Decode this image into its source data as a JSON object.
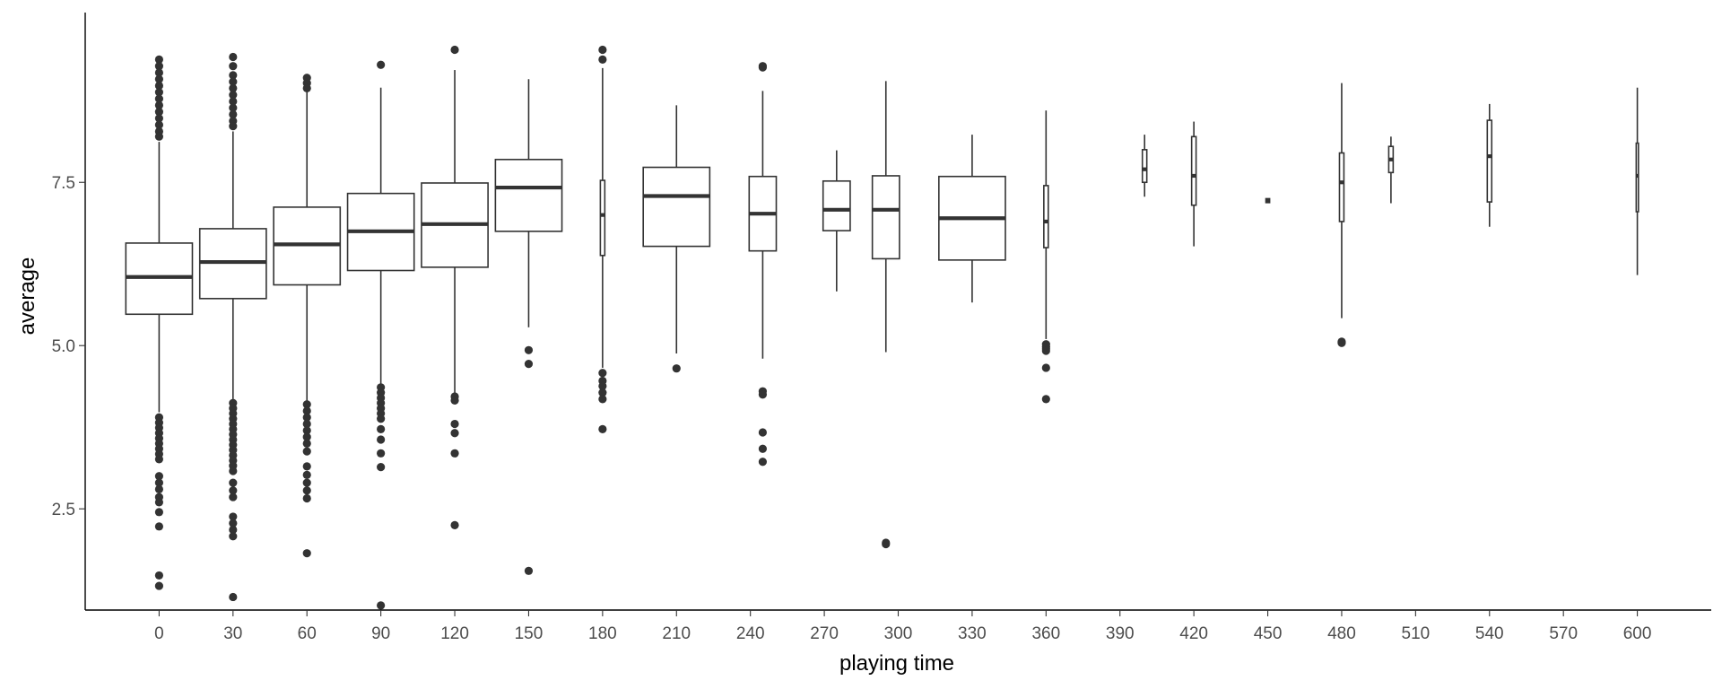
{
  "chart_data": {
    "type": "boxplot",
    "xlabel": "playing time",
    "ylabel": "average",
    "x_ticks": [
      0,
      30,
      60,
      90,
      120,
      150,
      180,
      210,
      240,
      270,
      300,
      330,
      360,
      390,
      420,
      450,
      480,
      510,
      540,
      570,
      600
    ],
    "y_ticks": [
      2.5,
      5.0,
      7.5
    ],
    "y_tick_labels": [
      "2.5",
      "5.0",
      "7.5"
    ],
    "xlim": [
      -30,
      630
    ],
    "ylim": [
      0.95,
      10.1
    ],
    "grid": false,
    "colors": {
      "box_line": "#333333",
      "box_fill": "#ffffff",
      "axis": "#000000",
      "tick_text": "#4d4d4d"
    },
    "groups": [
      {
        "x": 0,
        "width": 27,
        "q1": 5.48,
        "median": 6.05,
        "q3": 6.57,
        "whisker_low": 3.98,
        "whisker_high": 8.12,
        "outliers": [
          9.38,
          9.28,
          9.18,
          9.08,
          8.98,
          8.88,
          8.78,
          8.68,
          8.58,
          8.48,
          8.38,
          8.28,
          8.2,
          3.9,
          3.82,
          3.74,
          3.66,
          3.58,
          3.5,
          3.42,
          3.34,
          3.26,
          3.0,
          2.9,
          2.8,
          2.68,
          2.6,
          2.45,
          2.23,
          1.48,
          1.32
        ]
      },
      {
        "x": 30,
        "width": 27,
        "q1": 5.72,
        "median": 6.28,
        "q3": 6.79,
        "whisker_low": 4.18,
        "whisker_high": 8.28,
        "outliers": [
          9.42,
          9.28,
          9.14,
          9.04,
          8.94,
          8.84,
          8.74,
          8.64,
          8.54,
          8.44,
          8.36,
          4.12,
          4.04,
          3.96,
          3.88,
          3.8,
          3.72,
          3.64,
          3.56,
          3.48,
          3.4,
          3.32,
          3.24,
          3.16,
          3.08,
          2.9,
          2.78,
          2.68,
          2.38,
          2.28,
          2.18,
          2.08,
          1.15
        ]
      },
      {
        "x": 60,
        "width": 27,
        "q1": 5.93,
        "median": 6.55,
        "q3": 7.12,
        "whisker_low": 4.15,
        "whisker_high": 8.9,
        "outliers": [
          9.1,
          9.02,
          8.94,
          4.1,
          4.0,
          3.9,
          3.8,
          3.7,
          3.6,
          3.5,
          3.38,
          3.15,
          3.02,
          2.9,
          2.78,
          2.66,
          1.82
        ]
      },
      {
        "x": 90,
        "width": 27,
        "q1": 6.15,
        "median": 6.75,
        "q3": 7.33,
        "whisker_low": 4.4,
        "whisker_high": 8.95,
        "outliers": [
          9.3,
          4.36,
          4.28,
          4.2,
          4.12,
          4.04,
          3.96,
          3.88,
          3.72,
          3.56,
          3.35,
          3.14,
          1.02
        ]
      },
      {
        "x": 120,
        "width": 27,
        "q1": 6.2,
        "median": 6.86,
        "q3": 7.49,
        "whisker_low": 4.25,
        "whisker_high": 9.22,
        "outliers": [
          9.53,
          4.22,
          4.16,
          3.8,
          3.66,
          3.35,
          2.25
        ]
      },
      {
        "x": 150,
        "width": 27,
        "q1": 6.75,
        "median": 7.42,
        "q3": 7.85,
        "whisker_low": 5.28,
        "whisker_high": 9.08,
        "outliers": [
          4.93,
          4.72,
          1.55
        ]
      },
      {
        "x": 180,
        "width": 1.8,
        "q1": 6.38,
        "median": 7.0,
        "q3": 7.53,
        "whisker_low": 4.66,
        "whisker_high": 9.25,
        "outliers": [
          9.53,
          9.38,
          4.58,
          4.46,
          4.38,
          4.28,
          4.18,
          3.72
        ]
      },
      {
        "x": 210,
        "width": 27,
        "q1": 6.52,
        "median": 7.29,
        "q3": 7.73,
        "whisker_low": 4.88,
        "whisker_high": 8.68,
        "outliers": [
          4.65
        ]
      },
      {
        "x": 245,
        "width": 11,
        "q1": 6.45,
        "median": 7.02,
        "q3": 7.59,
        "whisker_low": 4.8,
        "whisker_high": 8.9,
        "outliers": [
          9.28,
          9.26,
          4.3,
          4.25,
          3.67,
          3.42,
          3.22
        ]
      },
      {
        "x": 275,
        "width": 11,
        "q1": 6.76,
        "median": 7.08,
        "q3": 7.52,
        "whisker_low": 5.83,
        "whisker_high": 7.99,
        "outliers": []
      },
      {
        "x": 295,
        "width": 11,
        "q1": 6.33,
        "median": 7.08,
        "q3": 7.6,
        "whisker_low": 4.9,
        "whisker_high": 9.05,
        "outliers": [
          1.96,
          1.98
        ]
      },
      {
        "x": 330,
        "width": 27,
        "q1": 6.31,
        "median": 6.95,
        "q3": 7.59,
        "whisker_low": 5.66,
        "whisker_high": 8.23,
        "outliers": []
      },
      {
        "x": 360,
        "width": 1.8,
        "q1": 6.5,
        "median": 6.9,
        "q3": 7.45,
        "whisker_low": 5.1,
        "whisker_high": 8.6,
        "outliers": [
          5.02,
          4.98,
          4.95,
          4.92,
          4.66,
          4.18
        ]
      },
      {
        "x": 400,
        "width": 1.8,
        "q1": 7.5,
        "median": 7.7,
        "q3": 8.0,
        "whisker_low": 7.28,
        "whisker_high": 8.23,
        "outliers": []
      },
      {
        "x": 420,
        "width": 1.8,
        "q1": 7.15,
        "median": 7.6,
        "q3": 8.2,
        "whisker_low": 6.52,
        "whisker_high": 8.43,
        "outliers": []
      },
      {
        "x": 450,
        "width": 1.5,
        "q1": 7.19,
        "median": 7.22,
        "q3": 7.25,
        "whisker_low": 7.19,
        "whisker_high": 7.25,
        "outliers": []
      },
      {
        "x": 480,
        "width": 1.8,
        "q1": 6.9,
        "median": 7.5,
        "q3": 7.95,
        "whisker_low": 5.42,
        "whisker_high": 9.02,
        "outliers": [
          5.06,
          5.04
        ]
      },
      {
        "x": 500,
        "width": 1.8,
        "q1": 7.65,
        "median": 7.85,
        "q3": 8.05,
        "whisker_low": 7.18,
        "whisker_high": 8.2,
        "outliers": []
      },
      {
        "x": 540,
        "width": 1.8,
        "q1": 7.2,
        "median": 7.9,
        "q3": 8.45,
        "whisker_low": 6.82,
        "whisker_high": 8.7,
        "outliers": []
      },
      {
        "x": 600,
        "width": 0.9,
        "q1": 7.05,
        "median": 7.6,
        "q3": 8.1,
        "whisker_low": 6.08,
        "whisker_high": 8.95,
        "outliers": []
      }
    ]
  }
}
